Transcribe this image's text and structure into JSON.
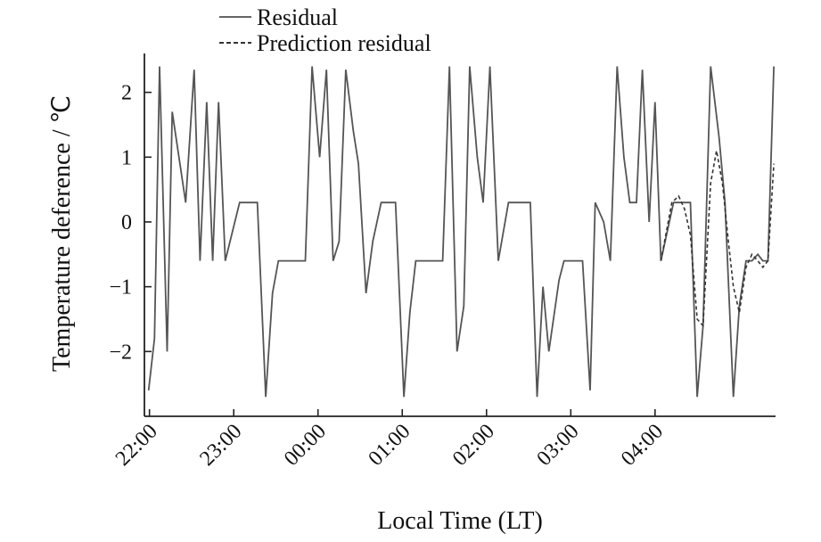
{
  "chart_data": {
    "type": "line",
    "xlabel": "Local Time (LT)",
    "ylabel": "Temperature deference / ℃",
    "ylim": [
      -3,
      2.6
    ],
    "y_ticks": [
      2,
      1,
      0,
      -1,
      -2
    ],
    "y_tick_labels": [
      "2",
      "1",
      "0",
      "−1",
      "−2"
    ],
    "x_ticks": [
      22.0,
      23.0,
      24.0,
      25.0,
      26.0,
      27.0,
      28.0
    ],
    "x_tick_labels": [
      "22:00",
      "23:00",
      "00:00",
      "01:00",
      "02:00",
      "03:00",
      "04:00"
    ],
    "legend_position": "top",
    "series": [
      {
        "name": "Residual",
        "style": "solid",
        "color": "#555555",
        "points": [
          [
            21.99,
            -2.6
          ],
          [
            22.06,
            -1.8
          ],
          [
            22.12,
            2.4
          ],
          [
            22.21,
            -2.0
          ],
          [
            22.27,
            1.7
          ],
          [
            22.43,
            0.3
          ],
          [
            22.53,
            2.35
          ],
          [
            22.6,
            -0.6
          ],
          [
            22.68,
            1.85
          ],
          [
            22.75,
            -0.6
          ],
          [
            22.82,
            1.85
          ],
          [
            22.9,
            -0.6
          ],
          [
            23.07,
            0.3
          ],
          [
            23.28,
            0.3
          ],
          [
            23.38,
            -2.7
          ],
          [
            23.46,
            -1.1
          ],
          [
            23.53,
            -0.6
          ],
          [
            23.85,
            -0.6
          ],
          [
            23.93,
            2.4
          ],
          [
            24.02,
            1.0
          ],
          [
            24.1,
            2.35
          ],
          [
            24.18,
            -0.6
          ],
          [
            24.25,
            -0.3
          ],
          [
            24.33,
            2.35
          ],
          [
            24.42,
            1.4
          ],
          [
            24.48,
            0.9
          ],
          [
            24.57,
            -1.1
          ],
          [
            24.65,
            -0.3
          ],
          [
            24.75,
            0.3
          ],
          [
            24.92,
            0.3
          ],
          [
            25.02,
            -2.7
          ],
          [
            25.09,
            -1.4
          ],
          [
            25.16,
            -0.6
          ],
          [
            25.48,
            -0.6
          ],
          [
            25.56,
            2.4
          ],
          [
            25.65,
            -2.0
          ],
          [
            25.73,
            -1.3
          ],
          [
            25.8,
            2.4
          ],
          [
            25.89,
            1.0
          ],
          [
            25.96,
            0.3
          ],
          [
            26.04,
            2.4
          ],
          [
            26.14,
            -0.6
          ],
          [
            26.26,
            0.3
          ],
          [
            26.52,
            0.3
          ],
          [
            26.6,
            -2.7
          ],
          [
            26.67,
            -1.0
          ],
          [
            26.74,
            -2.0
          ],
          [
            26.86,
            -0.9
          ],
          [
            26.92,
            -0.6
          ],
          [
            27.14,
            -0.6
          ],
          [
            27.23,
            -2.6
          ],
          [
            27.29,
            0.3
          ],
          [
            27.39,
            0.0
          ],
          [
            27.47,
            -0.6
          ],
          [
            27.55,
            2.4
          ],
          [
            27.63,
            1.0
          ],
          [
            27.7,
            0.3
          ],
          [
            27.78,
            0.3
          ],
          [
            27.85,
            2.35
          ],
          [
            27.93,
            0.0
          ],
          [
            28.0,
            1.85
          ],
          [
            28.07,
            -0.6
          ],
          [
            28.22,
            0.3
          ],
          [
            28.32,
            0.3
          ],
          [
            28.42,
            0.3
          ],
          [
            28.5,
            -2.7
          ],
          [
            28.57,
            -1.6
          ],
          [
            28.66,
            2.4
          ],
          [
            28.76,
            1.3
          ],
          [
            28.83,
            0.3
          ],
          [
            28.93,
            -2.7
          ],
          [
            29.0,
            -1.3
          ],
          [
            29.08,
            -0.6
          ],
          [
            29.15,
            -0.6
          ],
          [
            29.22,
            -0.5
          ],
          [
            29.28,
            -0.6
          ],
          [
            29.34,
            -0.6
          ],
          [
            29.41,
            2.4
          ]
        ]
      },
      {
        "name": "Prediction residual",
        "style": "dashed",
        "color": "#333333",
        "points": [
          [
            28.07,
            -0.6
          ],
          [
            28.2,
            0.3
          ],
          [
            28.28,
            0.4
          ],
          [
            28.35,
            0.2
          ],
          [
            28.42,
            -0.2
          ],
          [
            28.5,
            -1.5
          ],
          [
            28.57,
            -1.6
          ],
          [
            28.66,
            0.6
          ],
          [
            28.73,
            1.1
          ],
          [
            28.8,
            0.6
          ],
          [
            28.87,
            -0.3
          ],
          [
            28.93,
            -1.0
          ],
          [
            29.0,
            -1.4
          ],
          [
            29.08,
            -0.7
          ],
          [
            29.15,
            -0.5
          ],
          [
            29.22,
            -0.6
          ],
          [
            29.28,
            -0.7
          ],
          [
            29.34,
            -0.6
          ],
          [
            29.41,
            0.9
          ]
        ]
      }
    ]
  }
}
